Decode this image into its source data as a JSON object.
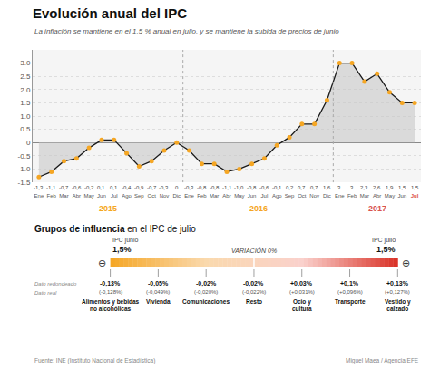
{
  "chart_data": {
    "type": "line",
    "title": "Evolución anual del IPC",
    "subtitle": "La inflación se mantiene en el 1,5 % anual en julio, y se mantiene la subida de precios de junio",
    "categories": [
      "Ene",
      "Feb",
      "Mar",
      "Abr",
      "May",
      "Jun",
      "Jul",
      "Ago",
      "Sep",
      "Oct",
      "Nov",
      "Dic",
      "Ene",
      "Feb",
      "Mar",
      "Abr",
      "May",
      "Jun",
      "Jul",
      "Ago",
      "Sep",
      "Oct",
      "Nov",
      "Dic",
      "Ene",
      "Feb",
      "Mar",
      "Abr",
      "May",
      "Jun",
      "Jul"
    ],
    "values": [
      -1.3,
      -1.1,
      -0.7,
      -0.6,
      -0.2,
      0.1,
      0.1,
      -0.4,
      -0.9,
      -0.7,
      -0.3,
      0,
      -0.3,
      -0.8,
      -0.8,
      -1.1,
      -1.0,
      -0.8,
      -0.6,
      -0.1,
      0.2,
      0.7,
      0.7,
      1.6,
      3,
      3,
      2.3,
      2.6,
      1.9,
      1.5,
      1.5
    ],
    "value_labels": [
      "-1,3",
      "-1,1",
      "-0,7",
      "-0,6",
      "-0,2",
      "0,1",
      "0,1",
      "-0,4",
      "-0,9",
      "-0,7",
      "-0,3",
      "0",
      "-0,3",
      "-0,8",
      "-0,8",
      "-1,1",
      "-1,0",
      "-0,8",
      "-0,6",
      "-0,1",
      "0,2",
      "0,7",
      "0,7",
      "1,6",
      "3",
      "3",
      "2,3",
      "2,6",
      "1,9",
      "1,5",
      "1,5"
    ],
    "data_labels": true,
    "color": "#1a1a1a",
    "colors": [
      "#f5a623",
      "#f5a623",
      "#f5a623",
      "#f5a623",
      "#f5a623",
      "#f5a623",
      "#f5a623",
      "#f5a623",
      "#f5a623",
      "#f5a623",
      "#f5a623",
      "#f5a623",
      "#f5a623",
      "#f5a623",
      "#f5a623",
      "#f5a623",
      "#f5a623",
      "#f5a623",
      "#f5a623",
      "#f5a623",
      "#f5a623",
      "#f5a623",
      "#f5a623",
      "#f5a623",
      "#f5a623",
      "#f5a623",
      "#f5a623",
      "#f5a623",
      "#f5a623",
      "#f5a623",
      "#f5a623"
    ],
    "marker": "circle",
    "ylim": [
      -1.5,
      3.5
    ],
    "yticks": [
      -1.5,
      {
        "value": -1,
        "label": "-1.0"
      },
      -0.5,
      0,
      0.5,
      {
        "value": 1,
        "label": "1.0"
      },
      1.5,
      {
        "value": 2,
        "label": "2.0"
      },
      2.5,
      {
        "value": 3,
        "label": "3.0"
      }
    ],
    "grid": true,
    "year_labels": [
      "2015",
      "2016",
      "2017"
    ],
    "panel_title": [
      "Grupos de influencia",
      " en el IPC de julio"
    ],
    "scale_label": "VARIACIÓN 0%",
    "ends": [
      {
        "symbol": "⊖",
        "label": "IPC junio",
        "text": "1,5%"
      },
      {
        "symbol": "⊕",
        "label": "IPC julio",
        "text": "1,5%"
      }
    ],
    "row_labels": [
      "Dato redondeado",
      "Dato real"
    ],
    "groups": [
      {
        "name": "Alimentos y bebidas\nno alcohólicas",
        "display": "-0,13%",
        "real": "(-0,128%)"
      },
      {
        "name": "Vivienda",
        "display": "-0,05%",
        "real": "(-0,049%)"
      },
      {
        "name": "Comunicaciones",
        "display": "-0,02%",
        "real": "(-0,020%)"
      },
      {
        "name": "Resto",
        "display": "-0,02%",
        "real": "(-0,022%)"
      },
      {
        "name": "Ocio y\ncultura",
        "display": "+0,03%",
        "real": "(+0,031%)"
      },
      {
        "name": "Transporte",
        "display": "+0,1%",
        "real": "(+0,096%)"
      },
      {
        "name": "Vestido y\ncalzado",
        "display": "+0,13%",
        "real": "(+0,127%)"
      }
    ],
    "source": [
      "Fuente: INE (Instituto Nacional de Estadística)",
      "Miguel Maea / Agencia EFE"
    ]
  }
}
